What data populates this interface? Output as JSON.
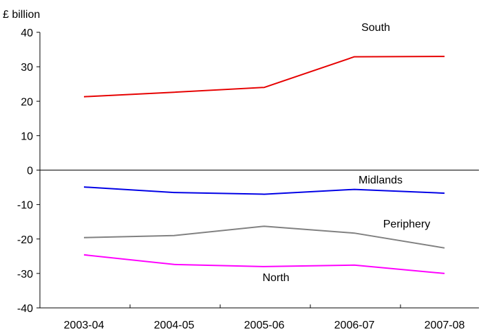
{
  "chart_data": {
    "type": "line",
    "y_unit_label": "£ billion",
    "categories": [
      "2003-04",
      "2004-05",
      "2005-06",
      "2006-07",
      "2007-08"
    ],
    "ylim": [
      -40,
      40
    ],
    "yticks": [
      -40,
      -30,
      -20,
      -10,
      0,
      10,
      20,
      30,
      40
    ],
    "grid": false,
    "series": [
      {
        "name": "South",
        "color": "#e60000",
        "values": [
          21.3,
          22.6,
          24.0,
          32.9,
          33.0
        ]
      },
      {
        "name": "Midlands",
        "color": "#0000e6",
        "values": [
          -4.9,
          -6.5,
          -7.0,
          -5.6,
          -6.7
        ]
      },
      {
        "name": "Periphery",
        "color": "#808080",
        "values": [
          -19.6,
          -19.0,
          -16.3,
          -18.3,
          -22.6
        ]
      },
      {
        "name": "North",
        "color": "#ff00ff",
        "values": [
          -24.6,
          -27.4,
          -28.0,
          -27.6,
          -30.0
        ]
      }
    ]
  }
}
